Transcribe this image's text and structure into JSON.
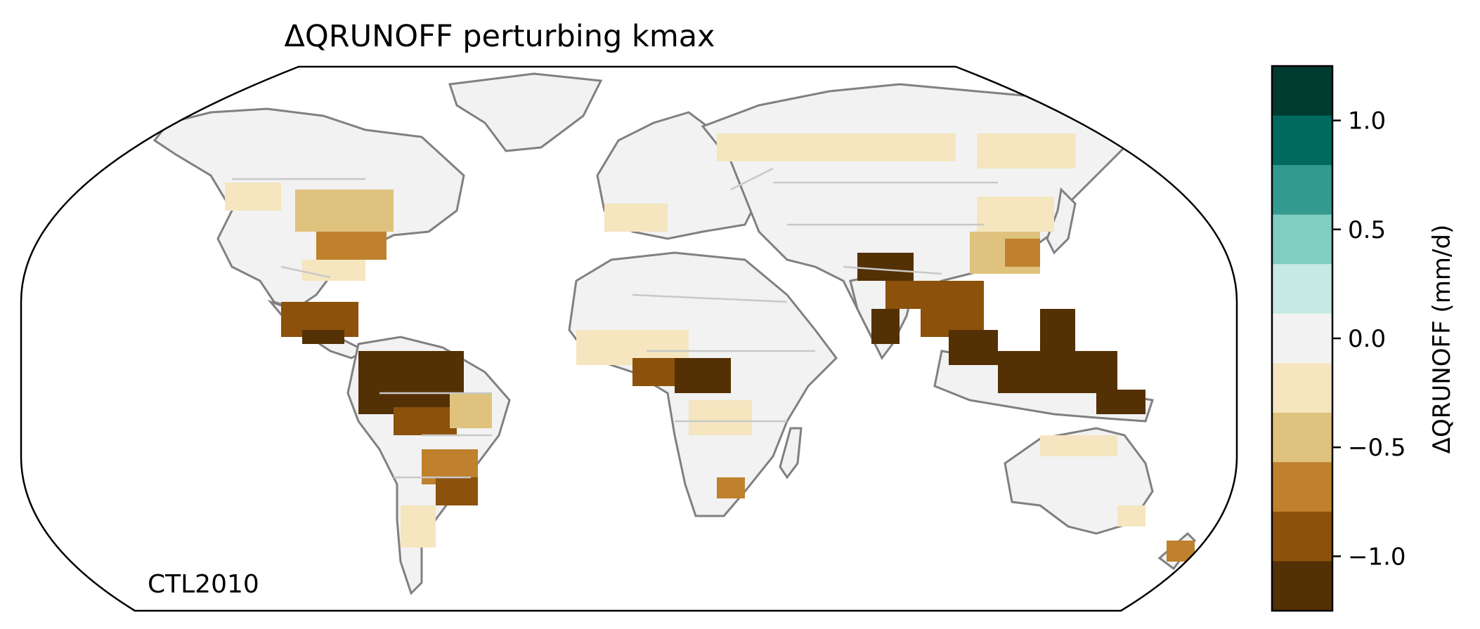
{
  "title": "ΔQRUNOFF perturbing kmax",
  "corner_label": "CTL2010",
  "colorbar": {
    "label": "ΔQRUNOFF (mm/d)",
    "range": [
      -1.25,
      1.25
    ],
    "bin_width": 0.25,
    "ticks": [
      {
        "value": 1.0,
        "label": "1.0"
      },
      {
        "value": 0.5,
        "label": "0.5"
      },
      {
        "value": 0.0,
        "label": "0.0"
      },
      {
        "value": -0.5,
        "label": "−0.5"
      },
      {
        "value": -1.0,
        "label": "−1.0"
      }
    ],
    "colors_top_to_bottom": [
      "#003b30",
      "#016a60",
      "#349a8f",
      "#80cdc1",
      "#c6eae4",
      "#f2f2f2",
      "#f5e6c0",
      "#dfc27d",
      "#bf812d",
      "#8c510a",
      "#543005"
    ]
  },
  "map_colors": {
    "land_neutral": "#f2f2f2",
    "coastline": "#808080",
    "borders": "#c8c8c8",
    "frame": "#000000"
  }
}
